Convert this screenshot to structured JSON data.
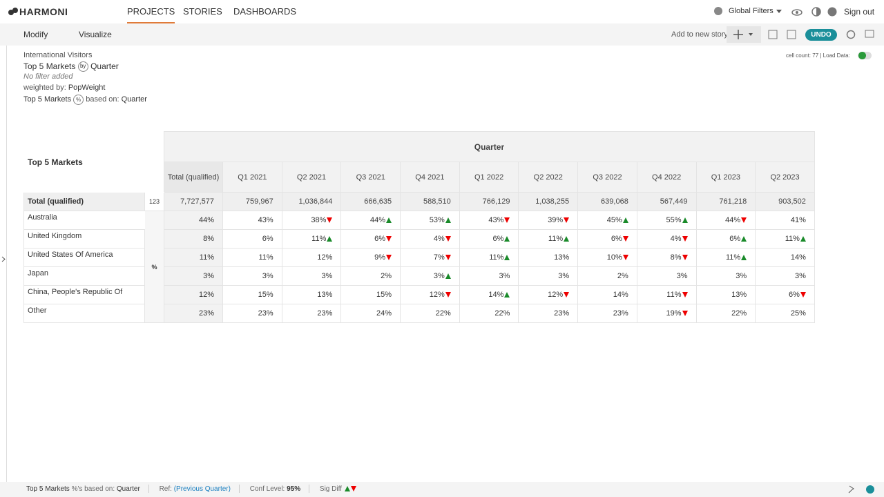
{
  "nav": {
    "brand": "HARMONI",
    "tabs": [
      "PROJECTS",
      "STORIES",
      "DASHBOARDS"
    ],
    "global_filters": "Global Filters",
    "sign_out": "Sign out"
  },
  "toolbar": {
    "modify": "Modify",
    "visualize": "Visualize",
    "add_story": "Add to new story",
    "undo": "UNDO"
  },
  "info": {
    "dataset": "International Visitors",
    "title_row": "Top 5 Markets",
    "by_icon": "by",
    "title_col": "Quarter",
    "filter": "No filter added",
    "weighted_label": "weighted by:",
    "weighted_value": "PopWeight",
    "base_row": "Top 5 Markets",
    "pct_icon": "%",
    "based_on": "based on:",
    "base_col": "Quarter",
    "cell_count": "cell count: 77 | Load Data:"
  },
  "table": {
    "corner": "Top 5 Markets",
    "header": "Quarter",
    "columns": [
      "Total (qualified)",
      "Q1 2021",
      "Q2 2021",
      "Q3 2021",
      "Q4 2021",
      "Q1 2022",
      "Q2 2022",
      "Q3 2022",
      "Q4 2022",
      "Q1 2023",
      "Q2 2023"
    ],
    "total_row": {
      "label": "Total (qualified)",
      "badge": "123",
      "values": [
        "7,727,577",
        "759,967",
        "1,036,844",
        "666,635",
        "588,510",
        "766,129",
        "1,038,255",
        "639,068",
        "567,449",
        "761,218",
        "903,502"
      ]
    },
    "stat_label": "%",
    "rows": [
      {
        "label": "Australia",
        "values": [
          "44%",
          "43%",
          "38%",
          "44%",
          "53%",
          "43%",
          "39%",
          "45%",
          "55%",
          "44%",
          "41%"
        ],
        "sig": [
          null,
          null,
          "down",
          "up",
          "up",
          "down",
          "down",
          "up",
          "up",
          "down",
          null
        ]
      },
      {
        "label": "United Kingdom",
        "values": [
          "8%",
          "6%",
          "11%",
          "6%",
          "4%",
          "6%",
          "11%",
          "6%",
          "4%",
          "6%",
          "11%"
        ],
        "sig": [
          null,
          null,
          "up",
          "down",
          "down",
          "up",
          "up",
          "down",
          "down",
          "up",
          "up"
        ]
      },
      {
        "label": "United States Of America",
        "values": [
          "11%",
          "11%",
          "12%",
          "9%",
          "7%",
          "11%",
          "13%",
          "10%",
          "8%",
          "11%",
          "14%"
        ],
        "sig": [
          null,
          null,
          null,
          "down",
          "down",
          "up",
          null,
          "down",
          "down",
          "up",
          null
        ]
      },
      {
        "label": "Japan",
        "values": [
          "3%",
          "3%",
          "3%",
          "2%",
          "3%",
          "3%",
          "3%",
          "2%",
          "3%",
          "3%",
          "3%"
        ],
        "sig": [
          null,
          null,
          null,
          null,
          "up",
          null,
          null,
          null,
          null,
          null,
          null
        ]
      },
      {
        "label": "China, People's Republic Of",
        "values": [
          "12%",
          "15%",
          "13%",
          "15%",
          "12%",
          "14%",
          "12%",
          "14%",
          "11%",
          "13%",
          "6%"
        ],
        "sig": [
          null,
          null,
          null,
          null,
          "down",
          "up",
          "down",
          null,
          "down",
          null,
          "down"
        ]
      },
      {
        "label": "Other",
        "values": [
          "23%",
          "23%",
          "23%",
          "24%",
          "22%",
          "22%",
          "23%",
          "23%",
          "19%",
          "22%",
          "25%"
        ],
        "sig": [
          null,
          null,
          null,
          null,
          null,
          null,
          null,
          null,
          "down",
          null,
          null
        ]
      }
    ]
  },
  "footer": {
    "row": "Top 5 Markets",
    "based_on": "%'s based on:",
    "col": "Quarter",
    "ref_label": "Ref:",
    "ref_value": "(Previous Quarter)",
    "conf_label": "Conf Level:",
    "conf_value": "95%",
    "sig_label": "Sig Diff"
  }
}
